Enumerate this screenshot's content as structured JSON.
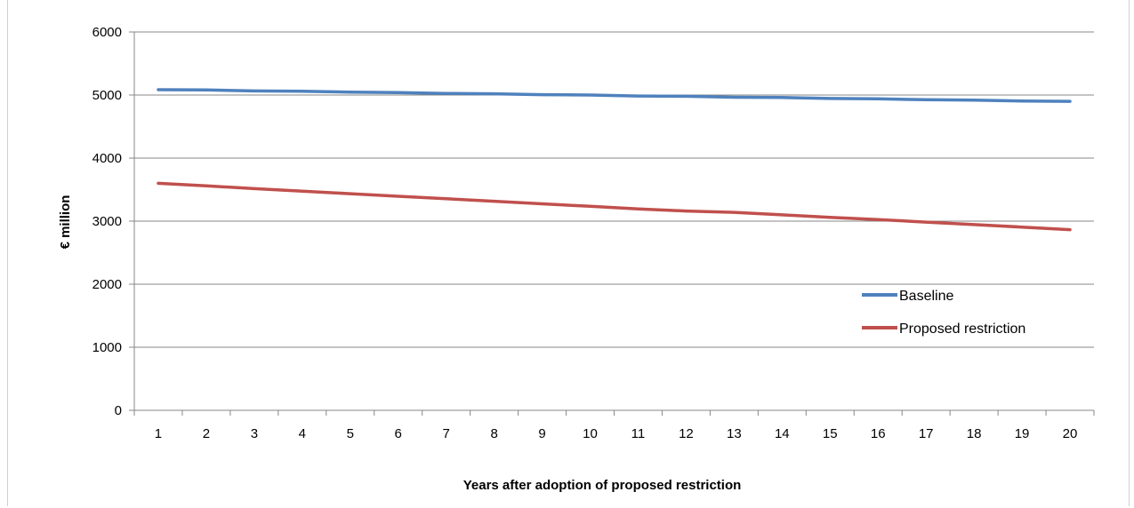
{
  "chart_data": {
    "type": "line",
    "title": "",
    "xlabel": "Years after adoption of proposed restriction",
    "ylabel": "€ million",
    "categories": [
      "1",
      "2",
      "3",
      "4",
      "5",
      "6",
      "7",
      "8",
      "9",
      "10",
      "11",
      "12",
      "13",
      "14",
      "15",
      "16",
      "17",
      "18",
      "19",
      "20"
    ],
    "ylim": [
      0,
      6000
    ],
    "yticks": [
      "0",
      "1000",
      "2000",
      "3000",
      "4000",
      "5000",
      "6000"
    ],
    "grid": "horizontal",
    "legend_position": "right",
    "series": [
      {
        "name": "Baseline",
        "color": "#4f81bd",
        "values": [
          5085,
          5080,
          5065,
          5060,
          5045,
          5040,
          5025,
          5020,
          5005,
          5000,
          4985,
          4980,
          4965,
          4960,
          4945,
          4940,
          4925,
          4920,
          4905,
          4900
        ]
      },
      {
        "name": "Proposed restriction",
        "color": "#c0504d",
        "values": [
          3600,
          3560,
          3515,
          3475,
          3435,
          3395,
          3355,
          3315,
          3275,
          3235,
          3195,
          3160,
          3140,
          3100,
          3060,
          3025,
          2985,
          2945,
          2905,
          2865
        ]
      }
    ]
  }
}
